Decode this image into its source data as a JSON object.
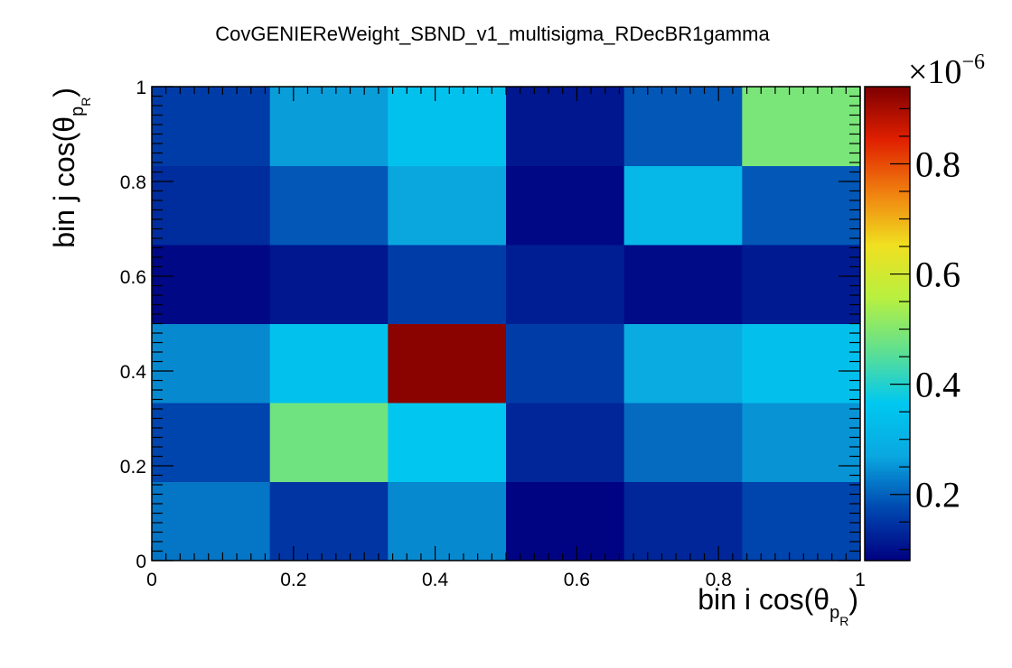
{
  "chart_data": {
    "type": "heatmap",
    "title": "CovGENIEReWeight_SBND_v1_multisigma_RDecBR1gamma",
    "xlabel": {
      "prefix": "bin i cos(θ",
      "sub": "p",
      "subsub": "R",
      "suffix": ")"
    },
    "ylabel": {
      "prefix": "bin j cos(θ",
      "sub": "p",
      "subsub": "R",
      "suffix": ")"
    },
    "xlim": [
      0,
      1
    ],
    "ylim": [
      0,
      1
    ],
    "x_ticks": [
      "0",
      "0.2",
      "0.4",
      "0.6",
      "0.8",
      "1"
    ],
    "y_ticks": [
      "0",
      "0.2",
      "0.4",
      "0.6",
      "0.8",
      "1"
    ],
    "x_bin_edges": [
      0,
      0.1667,
      0.3333,
      0.5,
      0.6667,
      0.8333,
      1
    ],
    "y_bin_edges": [
      0,
      0.1667,
      0.3333,
      0.5,
      0.6667,
      0.8333,
      1
    ],
    "values_rows_bottom_to_top": [
      [
        0.22,
        0.15,
        0.24,
        0.085,
        0.13,
        0.17
      ],
      [
        0.17,
        0.48,
        0.36,
        0.13,
        0.21,
        0.25
      ],
      [
        0.24,
        0.35,
        0.93,
        0.16,
        0.28,
        0.34
      ],
      [
        0.09,
        0.11,
        0.16,
        0.12,
        0.095,
        0.115
      ],
      [
        0.14,
        0.19,
        0.27,
        0.09,
        0.32,
        0.19
      ],
      [
        0.16,
        0.26,
        0.35,
        0.11,
        0.19,
        0.49
      ]
    ],
    "zlim": [
      0.08,
      0.94
    ],
    "value_multiplier_label": "×10",
    "value_multiplier_exponent": "−6",
    "colorbar_ticks": [
      {
        "value": 0.2,
        "label": "0.2"
      },
      {
        "value": 0.4,
        "label": "0.4"
      },
      {
        "value": 0.6,
        "label": "0.6"
      },
      {
        "value": 0.8,
        "label": "0.8"
      }
    ],
    "colormap": [
      "#000080",
      "#0048b0",
      "#0aa8e0",
      "#00c8f0",
      "#60e090",
      "#b8f040",
      "#f0e020",
      "#f08010",
      "#e02000",
      "#800000"
    ]
  }
}
